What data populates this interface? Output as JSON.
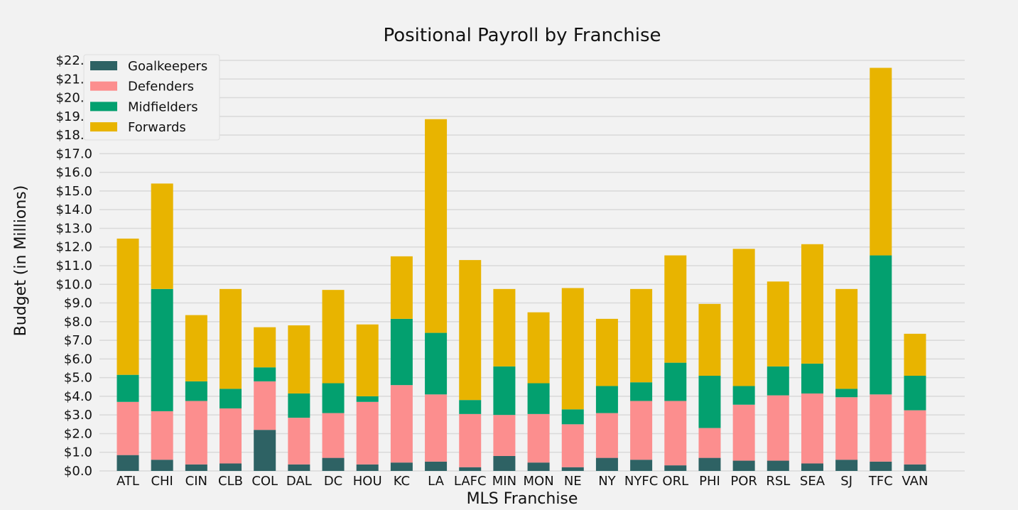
{
  "chart_data": {
    "type": "bar",
    "stacked": true,
    "title": "Positional Payroll by Franchise",
    "xlabel": "MLS Franchise",
    "ylabel": "Budget (in Millions)",
    "ylim": [
      0,
      22
    ],
    "ytick_step": 1,
    "ytick_prefix": "$",
    "ytick_decimals": 1,
    "grid": "horizontal",
    "legend_position": "top-left",
    "background_color": "#f2f2f2",
    "grid_color": "#d9d9d9",
    "categories": [
      "ATL",
      "CHI",
      "CIN",
      "CLB",
      "COL",
      "DAL",
      "DC",
      "HOU",
      "KC",
      "LA",
      "LAFC",
      "MIN",
      "MON",
      "NE",
      "NY",
      "NYFC",
      "ORL",
      "PHI",
      "POR",
      "RSL",
      "SEA",
      "SJ",
      "TFC",
      "VAN"
    ],
    "series": [
      {
        "name": "Goalkeepers",
        "color": "#2e6264",
        "values": [
          0.85,
          0.6,
          0.35,
          0.4,
          2.2,
          0.35,
          0.7,
          0.35,
          0.45,
          0.5,
          0.2,
          0.8,
          0.45,
          0.2,
          0.7,
          0.6,
          0.3,
          0.7,
          0.55,
          0.55,
          0.4,
          0.6,
          0.5,
          0.35
        ]
      },
      {
        "name": "Defenders",
        "color": "#fc8e8e",
        "values": [
          2.85,
          2.6,
          3.4,
          2.95,
          2.6,
          2.5,
          2.4,
          3.35,
          4.15,
          3.6,
          2.85,
          2.2,
          2.6,
          2.3,
          2.4,
          3.15,
          3.45,
          1.6,
          3.0,
          3.5,
          3.75,
          3.35,
          3.6,
          2.9
        ]
      },
      {
        "name": "Midfielders",
        "color": "#03a06f",
        "values": [
          1.45,
          6.55,
          1.05,
          1.05,
          0.75,
          1.3,
          1.6,
          0.3,
          3.55,
          3.3,
          0.75,
          2.6,
          1.65,
          0.8,
          1.45,
          1.0,
          2.05,
          2.8,
          1.0,
          1.55,
          1.6,
          0.45,
          7.45,
          1.85
        ]
      },
      {
        "name": "Forwards",
        "color": "#e8b400",
        "values": [
          7.3,
          5.65,
          3.55,
          5.35,
          2.15,
          3.65,
          5.0,
          3.85,
          3.35,
          11.45,
          7.5,
          4.15,
          3.8,
          6.5,
          3.6,
          5.0,
          5.75,
          3.85,
          7.35,
          4.55,
          6.4,
          5.35,
          10.05,
          2.25
        ]
      }
    ]
  }
}
